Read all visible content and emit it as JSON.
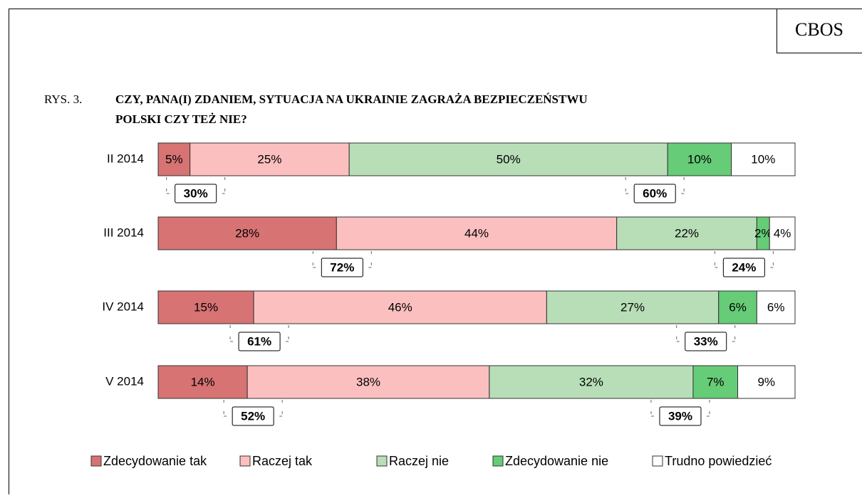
{
  "chart_data": {
    "type": "stacked-bar-horizontal",
    "brand": "CBOS",
    "figure_label": "RYS. 3.",
    "title_lines": [
      "CZY, PANA(I) ZDANIEM, SYTUACJA NA UKRAINIE ZAGRAŻA BEZPIECZEŃSTWU",
      "POLSKI CZY TEŻ NIE?"
    ],
    "categories": [
      "II 2014",
      "III 2014",
      "IV 2014",
      "V 2014"
    ],
    "xlim": [
      0,
      100
    ],
    "series": [
      {
        "name": "Zdecydowanie tak",
        "color": "#d77373",
        "values": [
          5,
          28,
          15,
          14
        ],
        "value_labels": [
          "5%",
          "28%",
          "15%",
          "14%"
        ]
      },
      {
        "name": "Raczej tak",
        "color": "#fcbfbf",
        "values": [
          25,
          44,
          46,
          38
        ],
        "value_labels": [
          "25%",
          "44%",
          "46%",
          "38%"
        ]
      },
      {
        "name": "Raczej nie",
        "color": "#b8deb8",
        "values": [
          50,
          22,
          27,
          32
        ],
        "value_labels": [
          "50%",
          "22%",
          "27%",
          "32%"
        ]
      },
      {
        "name": "Zdecydowanie nie",
        "color": "#66cc77",
        "values": [
          10,
          2,
          6,
          7
        ],
        "value_labels": [
          "10%",
          "2%",
          "6%",
          "7%"
        ]
      },
      {
        "name": "Trudno powiedzieć",
        "color": "#ffffff",
        "values": [
          10,
          4,
          6,
          9
        ],
        "value_labels": [
          "10%",
          "4%",
          "6%",
          "9%"
        ]
      }
    ],
    "yes_totals": {
      "values": [
        30,
        72,
        61,
        52
      ],
      "value_labels": [
        "30%",
        "72%",
        "61%",
        "52%"
      ]
    },
    "no_totals": {
      "values": [
        60,
        24,
        33,
        39
      ],
      "value_labels": [
        "60%",
        "24%",
        "33%",
        "39%"
      ]
    }
  }
}
